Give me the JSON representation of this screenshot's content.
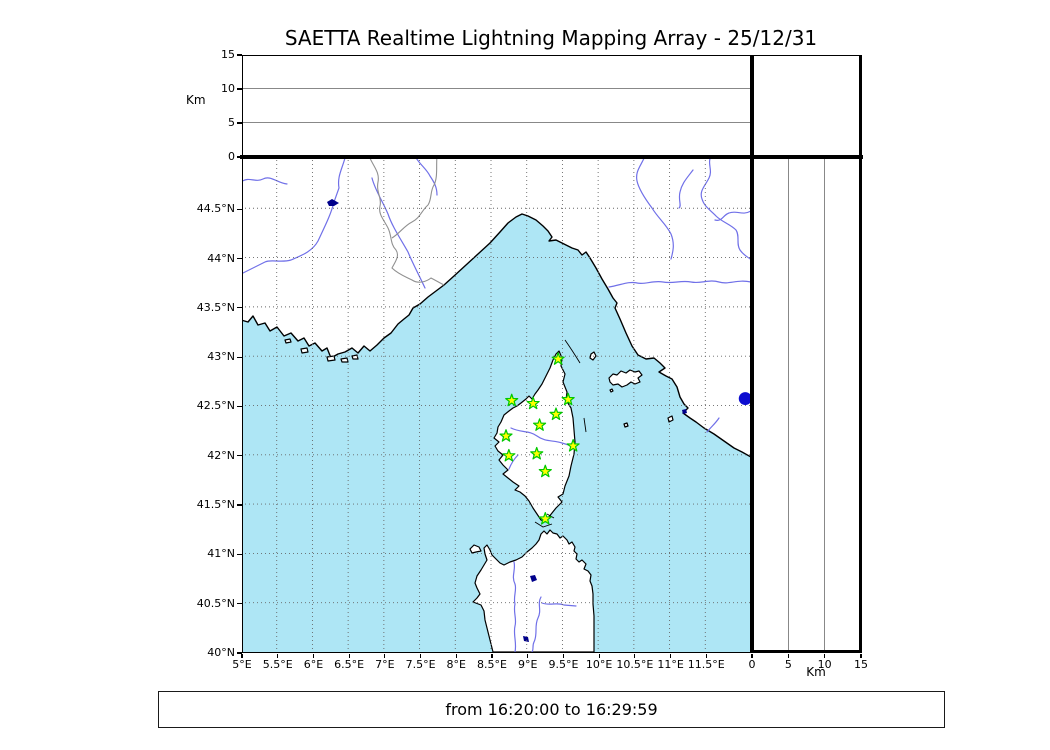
{
  "title": "SAETTA Realtime Lightning Mapping Array - 25/12/31",
  "footer": {
    "text": "from 16:20:00 to 16:29:59"
  },
  "axes": {
    "map": {
      "lon_range": [
        5,
        12.14
      ],
      "lat_range": [
        40,
        45.03
      ],
      "lon_ticks": [
        {
          "v": 5,
          "label": "5°E"
        },
        {
          "v": 5.5,
          "label": "5.5°E"
        },
        {
          "v": 6,
          "label": "6°E"
        },
        {
          "v": 6.5,
          "label": "6.5°E"
        },
        {
          "v": 7,
          "label": "7°E"
        },
        {
          "v": 7.5,
          "label": "7.5°E"
        },
        {
          "v": 8,
          "label": "8°E"
        },
        {
          "v": 8.5,
          "label": "8.5°E"
        },
        {
          "v": 9,
          "label": "9°E"
        },
        {
          "v": 9.5,
          "label": "9.5°E"
        },
        {
          "v": 10,
          "label": "10°E"
        },
        {
          "v": 10.5,
          "label": "10.5°E"
        },
        {
          "v": 11,
          "label": "11°E"
        },
        {
          "v": 11.5,
          "label": "11.5°E"
        }
      ],
      "lat_ticks": [
        {
          "v": 44.5,
          "label": "44.5°N"
        },
        {
          "v": 44,
          "label": "44°N"
        },
        {
          "v": 43.5,
          "label": "43.5°N"
        },
        {
          "v": 43,
          "label": "43°N"
        },
        {
          "v": 42.5,
          "label": "42.5°N"
        },
        {
          "v": 42,
          "label": "42°N"
        },
        {
          "v": 41.5,
          "label": "41.5°N"
        },
        {
          "v": 41,
          "label": "41°N"
        },
        {
          "v": 40.5,
          "label": "40.5°N"
        },
        {
          "v": 40,
          "label": "40°N"
        }
      ]
    },
    "altitude_top": {
      "label": "Km",
      "range": [
        0,
        15
      ],
      "ticks": [
        {
          "v": 0,
          "label": "0"
        },
        {
          "v": 5,
          "label": "5"
        },
        {
          "v": 10,
          "label": "10"
        },
        {
          "v": 15,
          "label": "15"
        }
      ],
      "grid": [
        5,
        10
      ]
    },
    "altitude_right": {
      "label": "Km",
      "range": [
        0,
        15
      ],
      "ticks": [
        {
          "v": 0,
          "label": "0"
        },
        {
          "v": 5,
          "label": "5"
        },
        {
          "v": 10,
          "label": "10"
        },
        {
          "v": 15,
          "label": "15"
        }
      ],
      "grid": [
        5,
        10
      ]
    }
  },
  "chart_data": {
    "type": "scatter",
    "title": "SAETTA Realtime Lightning Mapping Array - 25/12/31",
    "time_window": "from 16:20:00 to 16:29:59",
    "map_extent": {
      "lon_min": 5,
      "lon_max": 12.14,
      "lat_min": 40,
      "lat_max": 45.03
    },
    "altitude_axis_km": {
      "range": [
        0,
        15
      ],
      "ticks": [
        0,
        5,
        10,
        15
      ]
    },
    "stations": {
      "marker": "star",
      "fill": "#ffff00",
      "edge": "#00c800",
      "points": [
        {
          "lon": 9.44,
          "lat": 42.97
        },
        {
          "lon": 9.58,
          "lat": 42.56
        },
        {
          "lon": 8.79,
          "lat": 42.55
        },
        {
          "lon": 9.09,
          "lat": 42.52
        },
        {
          "lon": 9.41,
          "lat": 42.41
        },
        {
          "lon": 9.18,
          "lat": 42.3
        },
        {
          "lon": 8.71,
          "lat": 42.19
        },
        {
          "lon": 9.65,
          "lat": 42.09
        },
        {
          "lon": 9.14,
          "lat": 42.01
        },
        {
          "lon": 8.75,
          "lat": 41.99
        },
        {
          "lon": 9.26,
          "lat": 41.83
        },
        {
          "lon": 9.26,
          "lat": 41.35
        }
      ]
    },
    "detections": {
      "marker": "circle",
      "fill": "#0d0dd0",
      "points": [
        {
          "lon": 12.06,
          "lat": 42.57
        }
      ]
    }
  },
  "colors": {
    "sea": "#aee6f5",
    "land": "#ffffff",
    "coast": "#000000",
    "river": "#7070e8",
    "border": "#909090",
    "grid": "#666666",
    "lake": "#00008b",
    "station_fill": "#ffff00",
    "station_edge": "#00c800",
    "detection": "#0d0dd0"
  }
}
